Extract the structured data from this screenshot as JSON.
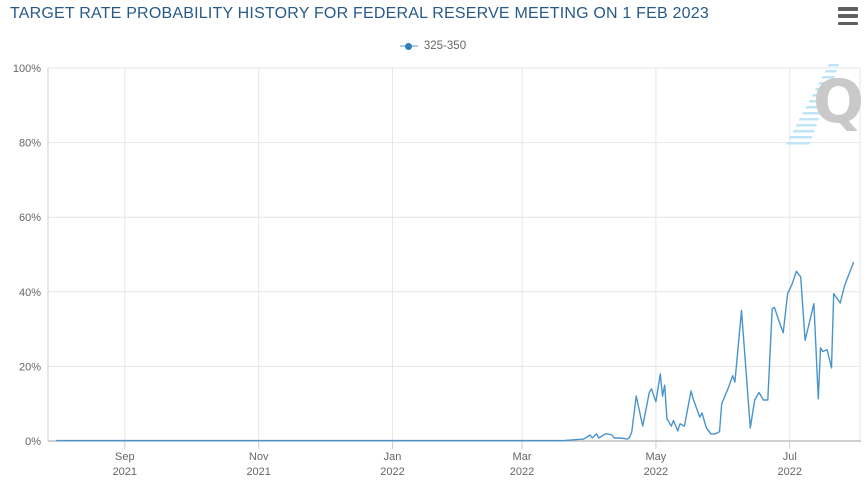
{
  "header": {
    "title": "TARGET RATE PROBABILITY HISTORY FOR FEDERAL RESERVE MEETING ON 1 FEB 2023"
  },
  "menu": {
    "icon": "hamburger-icon"
  },
  "legend": {
    "series_label": "325-350"
  },
  "watermark": {
    "letter": "Q"
  },
  "colors": {
    "title": "#275a88",
    "series_line": "#4a94cc",
    "legend_marker": "#2e7fc0",
    "legend_marker_line": "#a9cde8",
    "grid": "#e6e6e6",
    "y_axis_line": "#c9d0d9",
    "x_axis_line": "#b5b5b5",
    "tick": "#c9d0d9",
    "axis_label": "#666666",
    "menu_icon": "#5f5f5f",
    "watermark_q": "#c9c9c9",
    "watermark_stripes": "#bee4f6"
  },
  "chart_data": {
    "type": "line",
    "title": "TARGET RATE PROBABILITY HISTORY FOR FEDERAL RESERVE MEETING ON 1 FEB 2023",
    "xlabel": "",
    "ylabel": "",
    "ylim": [
      0,
      100
    ],
    "grid": true,
    "legend_position": "top",
    "x_range": [
      "2021-07-28",
      "2022-08-02"
    ],
    "yticks": [
      {
        "value": 0,
        "label": "0%"
      },
      {
        "value": 20,
        "label": "20%"
      },
      {
        "value": 40,
        "label": "40%"
      },
      {
        "value": 60,
        "label": "60%"
      },
      {
        "value": 80,
        "label": "80%"
      },
      {
        "value": 100,
        "label": "100%"
      }
    ],
    "xticks": [
      {
        "date": "2021-09-01",
        "line1": "Sep",
        "line2": "2021"
      },
      {
        "date": "2021-11-01",
        "line1": "Nov",
        "line2": "2021"
      },
      {
        "date": "2022-01-01",
        "line1": "Jan",
        "line2": "2022"
      },
      {
        "date": "2022-03-01",
        "line1": "Mar",
        "line2": "2022"
      },
      {
        "date": "2022-05-01",
        "line1": "May",
        "line2": "2022"
      },
      {
        "date": "2022-07-01",
        "line1": "Jul",
        "line2": "2022"
      }
    ],
    "series": [
      {
        "name": "325-350",
        "color": "#4a94cc",
        "points": [
          [
            "2021-08-01",
            0.1
          ],
          [
            "2021-09-01",
            0.1
          ],
          [
            "2021-10-01",
            0.1
          ],
          [
            "2021-11-01",
            0.1
          ],
          [
            "2021-12-01",
            0.1
          ],
          [
            "2022-01-01",
            0.1
          ],
          [
            "2022-02-01",
            0.1
          ],
          [
            "2022-03-01",
            0.1
          ],
          [
            "2022-03-20",
            0.1
          ],
          [
            "2022-03-29",
            0.5
          ],
          [
            "2022-04-01",
            1.6
          ],
          [
            "2022-04-02",
            0.8
          ],
          [
            "2022-04-04",
            1.9
          ],
          [
            "2022-04-05",
            0.8
          ],
          [
            "2022-04-08",
            1.9
          ],
          [
            "2022-04-09",
            1.9
          ],
          [
            "2022-04-11",
            1.6
          ],
          [
            "2022-04-12",
            0.8
          ],
          [
            "2022-04-15",
            0.8
          ],
          [
            "2022-04-18",
            0.5
          ],
          [
            "2022-04-19",
            1.0
          ],
          [
            "2022-04-20",
            2.5
          ],
          [
            "2022-04-22",
            12.1
          ],
          [
            "2022-04-25",
            4.0
          ],
          [
            "2022-04-28",
            13.0
          ],
          [
            "2022-04-29",
            14.0
          ],
          [
            "2022-05-01",
            10.5
          ],
          [
            "2022-05-03",
            18.0
          ],
          [
            "2022-05-04",
            12.0
          ],
          [
            "2022-05-05",
            15.0
          ],
          [
            "2022-05-06",
            6.0
          ],
          [
            "2022-05-08",
            4.0
          ],
          [
            "2022-05-09",
            5.5
          ],
          [
            "2022-05-11",
            2.7
          ],
          [
            "2022-05-12",
            4.6
          ],
          [
            "2022-05-14",
            4.0
          ],
          [
            "2022-05-17",
            13.4
          ],
          [
            "2022-05-18",
            11.3
          ],
          [
            "2022-05-20",
            8.0
          ],
          [
            "2022-05-21",
            6.4
          ],
          [
            "2022-05-22",
            7.5
          ],
          [
            "2022-05-24",
            3.5
          ],
          [
            "2022-05-26",
            1.9
          ],
          [
            "2022-05-28",
            1.9
          ],
          [
            "2022-05-30",
            2.5
          ],
          [
            "2022-05-31",
            10.0
          ],
          [
            "2022-06-03",
            14.2
          ],
          [
            "2022-06-05",
            17.5
          ],
          [
            "2022-06-06",
            15.8
          ],
          [
            "2022-06-09",
            35.0
          ],
          [
            "2022-06-13",
            3.5
          ],
          [
            "2022-06-15",
            11.0
          ],
          [
            "2022-06-17",
            13.0
          ],
          [
            "2022-06-19",
            11.0
          ],
          [
            "2022-06-21",
            11.0
          ],
          [
            "2022-06-23",
            35.5
          ],
          [
            "2022-06-24",
            35.8
          ],
          [
            "2022-06-26",
            32.3
          ],
          [
            "2022-06-28",
            29.0
          ],
          [
            "2022-06-30",
            39.5
          ],
          [
            "2022-07-02",
            42.0
          ],
          [
            "2022-07-04",
            45.5
          ],
          [
            "2022-07-06",
            44.0
          ],
          [
            "2022-07-08",
            27.0
          ],
          [
            "2022-07-12",
            36.8
          ],
          [
            "2022-07-14",
            11.3
          ],
          [
            "2022-07-15",
            25.0
          ],
          [
            "2022-07-16",
            24.0
          ],
          [
            "2022-07-18",
            24.5
          ],
          [
            "2022-07-20",
            19.6
          ],
          [
            "2022-07-21",
            39.5
          ],
          [
            "2022-07-24",
            37.0
          ],
          [
            "2022-07-26",
            41.7
          ],
          [
            "2022-07-30",
            47.8
          ]
        ]
      }
    ]
  }
}
